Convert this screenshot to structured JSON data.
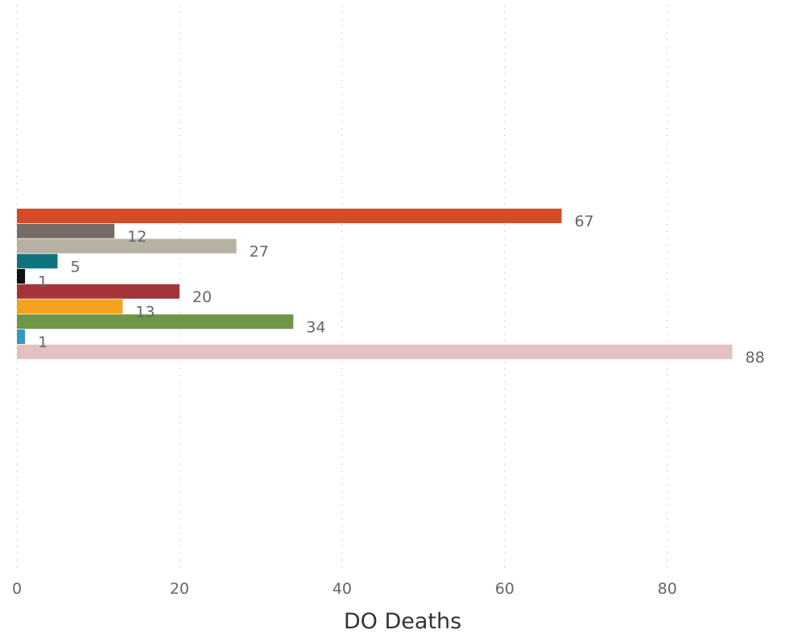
{
  "chart_data": {
    "type": "bar",
    "orientation": "horizontal",
    "xlabel": "DO Deaths",
    "xlim": [
      0,
      93
    ],
    "xticks": [
      0,
      20,
      40,
      60,
      80
    ],
    "grid": true,
    "series": [
      {
        "value": 67,
        "label": "67",
        "color": "#d64a2a"
      },
      {
        "value": 12,
        "label": "12",
        "color": "#776b65"
      },
      {
        "value": 27,
        "label": "27",
        "color": "#b7b1a4"
      },
      {
        "value": 5,
        "label": "5",
        "color": "#0f7480"
      },
      {
        "value": 1,
        "label": "1",
        "color": "#111111"
      },
      {
        "value": 20,
        "label": "20",
        "color": "#a6333a"
      },
      {
        "value": 13,
        "label": "13",
        "color": "#f5a11d"
      },
      {
        "value": 34,
        "label": "34",
        "color": "#6e9646"
      },
      {
        "value": 1,
        "label": "1",
        "color": "#3798c3"
      },
      {
        "value": 88,
        "label": "88",
        "color": "#e2c1c0"
      }
    ]
  }
}
